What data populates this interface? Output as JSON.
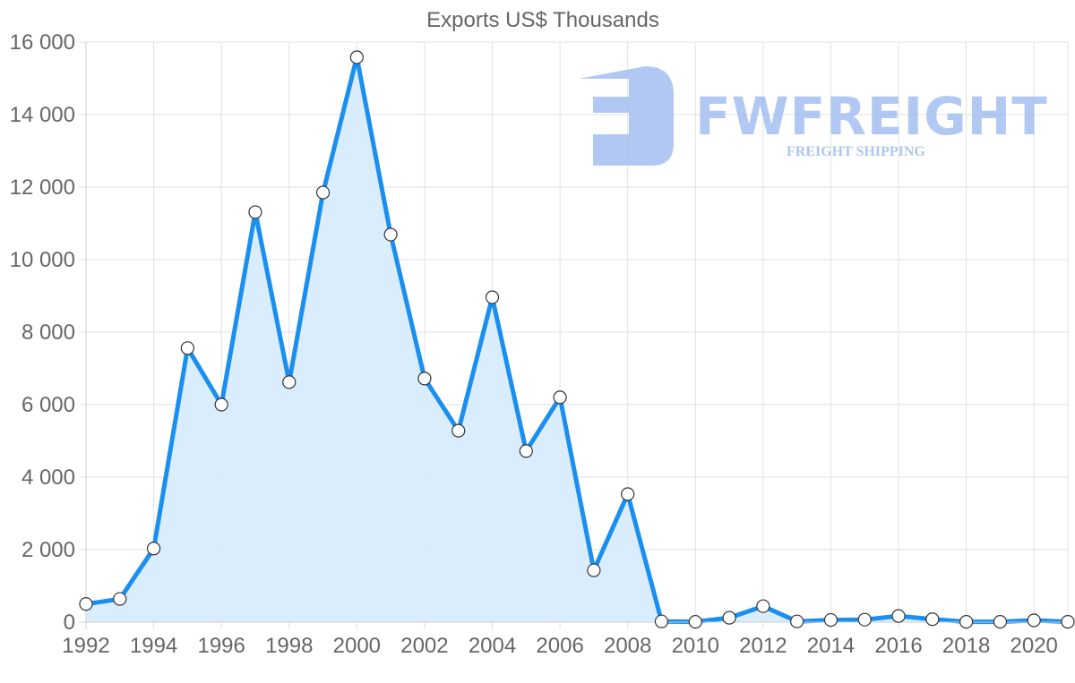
{
  "chart_data": {
    "type": "area",
    "title": "Exports US$ Thousands",
    "xlabel": "",
    "ylabel": "",
    "x": [
      1992,
      1993,
      1994,
      1995,
      1996,
      1997,
      1998,
      1999,
      2000,
      2001,
      2002,
      2003,
      2004,
      2005,
      2006,
      2007,
      2008,
      2009,
      2010,
      2011,
      2012,
      2013,
      2014,
      2015,
      2016,
      2017,
      2018,
      2019,
      2020,
      2021
    ],
    "series": [
      {
        "name": "Exports US$ Thousands",
        "values": [
          500,
          640,
          2030,
          7560,
          6000,
          11310,
          6620,
          11850,
          15580,
          10690,
          6720,
          5280,
          8960,
          4720,
          6200,
          1430,
          3530,
          20,
          10,
          120,
          440,
          20,
          60,
          70,
          170,
          80,
          10,
          10,
          50,
          10
        ]
      }
    ],
    "ylim": [
      0,
      16000
    ],
    "yticks": [
      0,
      2000,
      4000,
      6000,
      8000,
      10000,
      12000,
      14000,
      16000
    ],
    "ytick_labels": [
      "0",
      "2 000",
      "4 000",
      "6 000",
      "8 000",
      "10 000",
      "12 000",
      "14 000",
      "16 000"
    ],
    "xticks": [
      1992,
      1994,
      1996,
      1998,
      2000,
      2002,
      2004,
      2006,
      2008,
      2010,
      2012,
      2014,
      2016,
      2018,
      2020
    ],
    "grid": true,
    "legend": "none",
    "colors": {
      "line": "#1a8ff0",
      "fill": "#d8ecfc",
      "marker_fill": "#ffffff",
      "marker_stroke": "#333333"
    }
  },
  "watermark": {
    "brand": "FWFREIGHT",
    "tagline": "FREIGHT SHIPPING",
    "color": "#9ebcef"
  }
}
